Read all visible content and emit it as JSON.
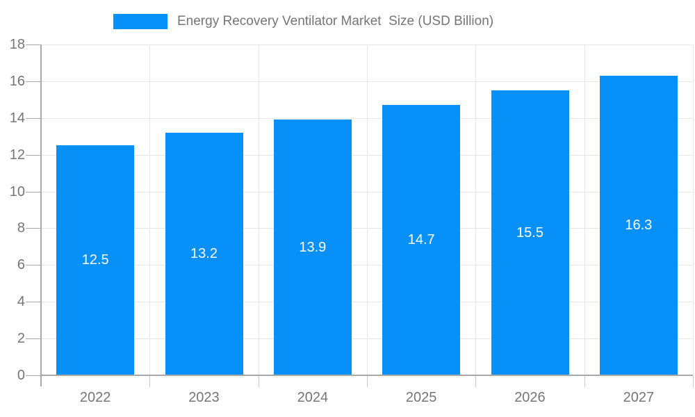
{
  "chart_data": {
    "type": "bar",
    "title": "Energy Recovery Ventilator Market  Size (USD Billion)",
    "categories": [
      "2022",
      "2023",
      "2024",
      "2025",
      "2026",
      "2027"
    ],
    "values": [
      12.5,
      13.2,
      13.9,
      14.7,
      15.5,
      16.3
    ],
    "xlabel": "",
    "ylabel": "",
    "ylim": [
      0,
      18
    ],
    "ytick_step": 2,
    "yticks": [
      0,
      2,
      4,
      6,
      8,
      10,
      12,
      14,
      16,
      18
    ],
    "grid": true,
    "legend_position": "top",
    "value_label_position": "inside-center",
    "value_label_decimals": 1
  },
  "colors": {
    "bar": "#0690F8",
    "axis": "#a8a8a8",
    "axis_extension": "#c6c6c6",
    "grid": "#e6e6e6",
    "text": "#757575",
    "value_label": "#ffffff",
    "x_tick": "#c9c9c9",
    "background": "#ffffff"
  }
}
